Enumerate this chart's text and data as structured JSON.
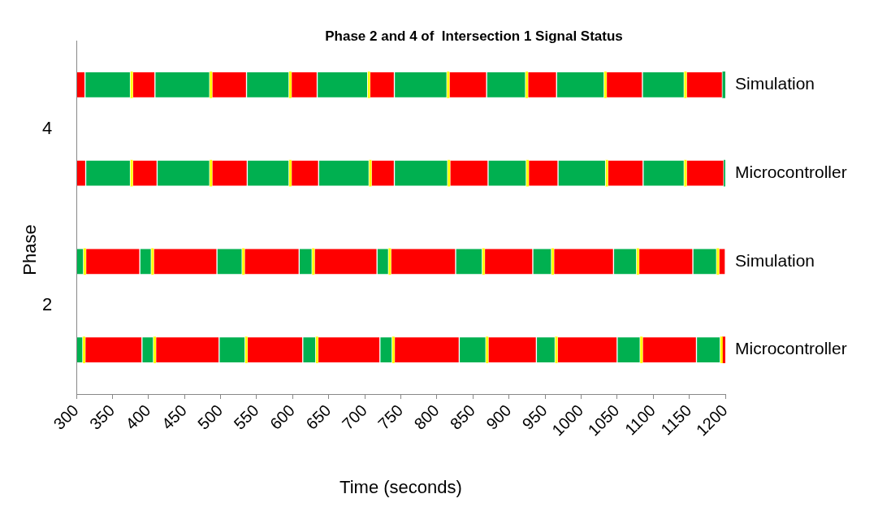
{
  "chart_data": {
    "type": "bar",
    "orientation": "horizontal",
    "stacked": true,
    "title": "Phase 2 and 4 of  Intersection 1 Signal Status",
    "xlabel": "Time (seconds)",
    "ylabel": "Phase",
    "annotations": [
      "4",
      "2"
    ],
    "categories": [
      "Simulation",
      "Microcontroller",
      "Simulation",
      "Microcontroller"
    ],
    "xlim": [
      300,
      1200
    ],
    "xticks": [
      300,
      350,
      400,
      450,
      500,
      550,
      600,
      650,
      700,
      750,
      800,
      850,
      900,
      950,
      1000,
      1050,
      1100,
      1150,
      1200
    ],
    "grid": false,
    "legend": false,
    "series": [
      {
        "base": [
          300,
          300,
          300,
          300
        ],
        "values": [
          12,
          13,
          10,
          9
        ],
        "colors": [
          "#ff0000",
          "#ff0000",
          "#00b050",
          "#00b050"
        ]
      },
      {
        "base": [
          312,
          313,
          310,
          309
        ],
        "values": [
          63,
          62,
          3,
          3
        ],
        "colors": [
          "#00b050",
          "#00b050",
          "#ffff00",
          "#ffff00"
        ]
      },
      {
        "base": [
          375,
          375,
          313,
          312
        ],
        "values": [
          3,
          3,
          75,
          79
        ],
        "colors": [
          "#ffff00",
          "#ffff00",
          "#ff0000",
          "#ff0000"
        ]
      },
      {
        "base": [
          378,
          378,
          388,
          391
        ],
        "values": [
          31,
          34,
          16,
          16
        ],
        "colors": [
          "#ff0000",
          "#ff0000",
          "#00b050",
          "#00b050"
        ]
      },
      {
        "base": [
          409,
          412,
          404,
          407
        ],
        "values": [
          76,
          73,
          3,
          3
        ],
        "colors": [
          "#00b050",
          "#00b050",
          "#ffff00",
          "#ffff00"
        ]
      },
      {
        "base": [
          485,
          485,
          407,
          410
        ],
        "values": [
          3,
          3,
          88,
          88
        ],
        "colors": [
          "#ffff00",
          "#ffff00",
          "#ff0000",
          "#ff0000"
        ]
      },
      {
        "base": [
          488,
          488,
          495,
          498
        ],
        "values": [
          48,
          49,
          35,
          36
        ],
        "colors": [
          "#ff0000",
          "#ff0000",
          "#00b050",
          "#00b050"
        ]
      },
      {
        "base": [
          536,
          537,
          530,
          534
        ],
        "values": [
          59,
          58,
          3,
          3
        ],
        "colors": [
          "#00b050",
          "#00b050",
          "#ffff00",
          "#ffff00"
        ]
      },
      {
        "base": [
          595,
          595,
          533,
          537
        ],
        "values": [
          3,
          3,
          76,
          77
        ],
        "colors": [
          "#ffff00",
          "#ffff00",
          "#ff0000",
          "#ff0000"
        ]
      },
      {
        "base": [
          598,
          598,
          609,
          614
        ],
        "values": [
          36,
          38,
          18,
          18
        ],
        "colors": [
          "#ff0000",
          "#ff0000",
          "#00b050",
          "#00b050"
        ]
      },
      {
        "base": [
          634,
          636,
          627,
          632
        ],
        "values": [
          70,
          70,
          3,
          3
        ],
        "colors": [
          "#00b050",
          "#00b050",
          "#ffff00",
          "#ffff00"
        ]
      },
      {
        "base": [
          704,
          706,
          630,
          635
        ],
        "values": [
          3,
          3,
          87,
          86
        ],
        "colors": [
          "#ffff00",
          "#ffff00",
          "#ff0000",
          "#ff0000"
        ]
      },
      {
        "base": [
          707,
          709,
          717,
          721
        ],
        "values": [
          34,
          32,
          16,
          17
        ],
        "colors": [
          "#ff0000",
          "#ff0000",
          "#00b050",
          "#00b050"
        ]
      },
      {
        "base": [
          741,
          741,
          733,
          738
        ],
        "values": [
          73,
          74,
          3,
          3
        ],
        "colors": [
          "#00b050",
          "#00b050",
          "#ffff00",
          "#ffff00"
        ]
      },
      {
        "base": [
          814,
          815,
          736,
          741
        ],
        "values": [
          3,
          3,
          90,
          90
        ],
        "colors": [
          "#ffff00",
          "#ffff00",
          "#ff0000",
          "#ff0000"
        ]
      },
      {
        "base": [
          817,
          818,
          826,
          831
        ],
        "values": [
          52,
          53,
          37,
          37
        ],
        "colors": [
          "#ff0000",
          "#ff0000",
          "#00b050",
          "#00b050"
        ]
      },
      {
        "base": [
          869,
          871,
          863,
          868
        ],
        "values": [
          54,
          53,
          3,
          3
        ],
        "colors": [
          "#00b050",
          "#00b050",
          "#ffff00",
          "#ffff00"
        ]
      },
      {
        "base": [
          923,
          924,
          866,
          871
        ],
        "values": [
          3,
          3,
          67,
          67
        ],
        "colors": [
          "#ffff00",
          "#ffff00",
          "#ff0000",
          "#ff0000"
        ]
      },
      {
        "base": [
          926,
          927,
          933,
          938
        ],
        "values": [
          40,
          41,
          26,
          26
        ],
        "colors": [
          "#ff0000",
          "#ff0000",
          "#00b050",
          "#00b050"
        ]
      },
      {
        "base": [
          966,
          968,
          959,
          964
        ],
        "values": [
          66,
          66,
          3,
          3
        ],
        "colors": [
          "#00b050",
          "#00b050",
          "#ffff00",
          "#ffff00"
        ]
      },
      {
        "base": [
          1032,
          1034,
          962,
          967
        ],
        "values": [
          3,
          3,
          83,
          83
        ],
        "colors": [
          "#ffff00",
          "#ffff00",
          "#ff0000",
          "#ff0000"
        ]
      },
      {
        "base": [
          1035,
          1037,
          1045,
          1050
        ],
        "values": [
          50,
          49,
          32,
          32
        ],
        "colors": [
          "#ff0000",
          "#ff0000",
          "#00b050",
          "#00b050"
        ]
      },
      {
        "base": [
          1085,
          1086,
          1077,
          1082
        ],
        "values": [
          58,
          57,
          3,
          3
        ],
        "colors": [
          "#00b050",
          "#00b050",
          "#ffff00",
          "#ffff00"
        ]
      },
      {
        "base": [
          1143,
          1143,
          1080,
          1085
        ],
        "values": [
          3,
          3,
          75,
          75
        ],
        "colors": [
          "#ffff00",
          "#ffff00",
          "#ff0000",
          "#ff0000"
        ]
      },
      {
        "base": [
          1146,
          1146,
          1155,
          1160
        ],
        "values": [
          50,
          52,
          33,
          33
        ],
        "colors": [
          "#ff0000",
          "#ff0000",
          "#00b050",
          "#00b050"
        ]
      },
      {
        "base": [
          1196,
          1198,
          1188,
          1193
        ],
        "values": [
          4,
          2,
          3,
          3
        ],
        "colors": [
          "#00b050",
          "#00b050",
          "#ffff00",
          "#ffff00"
        ]
      },
      {
        "base": [
          null,
          null,
          1191,
          1196
        ],
        "values": [
          null,
          null,
          9,
          4
        ],
        "colors": [
          null,
          null,
          "#ff0000",
          "#ff0000"
        ]
      }
    ]
  }
}
